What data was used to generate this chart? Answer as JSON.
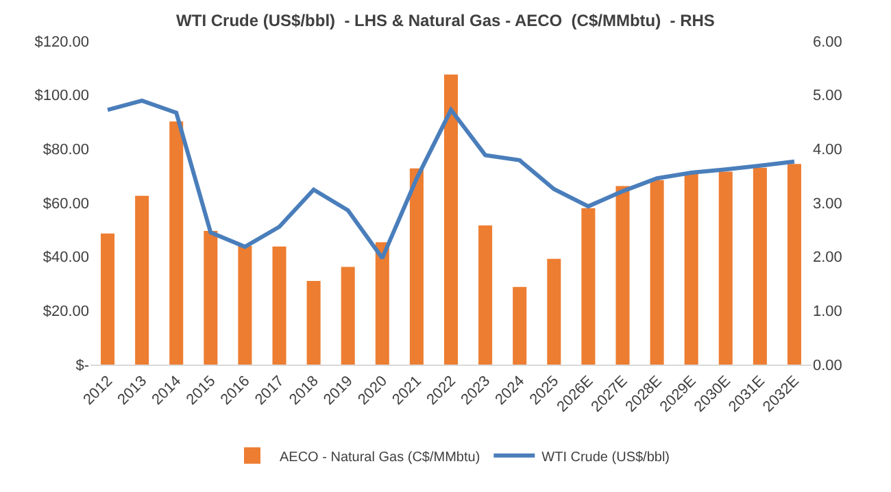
{
  "chart_data": {
    "type": "bar",
    "title": "WTI Crude (US$/bbl)  - LHS & Natural Gas - AECO  (C$/MMbtu)  - RHS",
    "categories": [
      "2012",
      "2013",
      "2014",
      "2015",
      "2016",
      "2017",
      "2018",
      "2019",
      "2020",
      "2021",
      "2022",
      "2023",
      "2024",
      "2025",
      "2026E",
      "2027E",
      "2028E",
      "2029E",
      "2030E",
      "2031E",
      "2032E"
    ],
    "series": [
      {
        "name": "AECO - Natural Gas (C$/MMbtu)",
        "axis": "y2",
        "color": "#ed7d31",
        "values": [
          2.43,
          3.13,
          4.51,
          2.48,
          2.2,
          2.19,
          1.55,
          1.81,
          2.27,
          3.64,
          5.38,
          2.58,
          1.44,
          1.96,
          2.9,
          3.31,
          3.42,
          3.54,
          3.58,
          3.65,
          3.72
        ]
      },
      {
        "name": "WTI Crude (US$/bbl)",
        "type": "line",
        "color": "#4a7ebb",
        "values": [
          94.5,
          97.9,
          93.4,
          49,
          43.7,
          51.1,
          64.9,
          57.2,
          39.5,
          69,
          94.5,
          77.7,
          75.8,
          65.1,
          58.7,
          64.3,
          69.1,
          71.2,
          72.4,
          73.8,
          75.3
        ]
      }
    ],
    "ylim": [
      0,
      120
    ],
    "yticks": [
      {
        "value": 0,
        "label": "$-"
      },
      {
        "value": 20,
        "label": "$20.00"
      },
      {
        "value": 40,
        "label": "$40.00"
      },
      {
        "value": 60,
        "label": "$60.00"
      },
      {
        "value": 80,
        "label": "$80.00"
      },
      {
        "value": 100,
        "label": "$100.00"
      },
      {
        "value": 120,
        "label": "$120.00"
      }
    ],
    "y2lim": [
      0,
      6
    ],
    "y2ticks": [
      {
        "value": 0,
        "label": "0.00"
      },
      {
        "value": 1,
        "label": "1.00"
      },
      {
        "value": 2,
        "label": "2.00"
      },
      {
        "value": 3,
        "label": "3.00"
      },
      {
        "value": 4,
        "label": "4.00"
      },
      {
        "value": 5,
        "label": "5.00"
      },
      {
        "value": 6,
        "label": "6.00"
      }
    ],
    "grid": false,
    "legend": "bottom",
    "marker": "none",
    "line_style": "solid"
  }
}
